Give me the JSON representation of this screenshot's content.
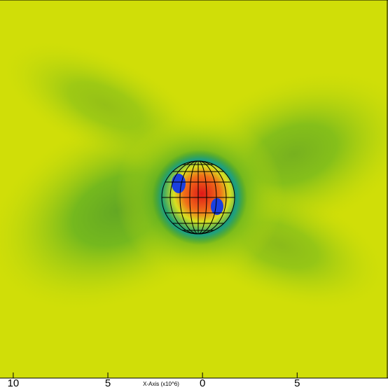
{
  "chart_data": {
    "type": "field",
    "x_label": "X-Axis (x10^6)",
    "xlim": [
      -10.7,
      9.8
    ],
    "xticks": [
      {
        "value": -10,
        "label": "10"
      },
      {
        "value": -5,
        "label": "5"
      },
      0,
      {
        "value": 5,
        "label": "5"
      }
    ]
  }
}
